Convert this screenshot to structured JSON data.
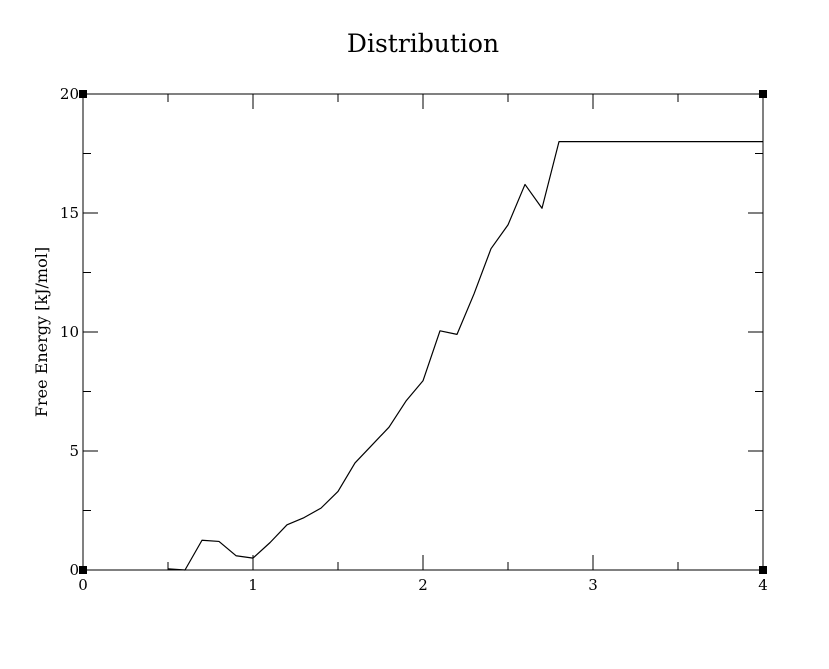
{
  "chart_data": {
    "type": "line",
    "title": "Distribution",
    "xlabel": "",
    "ylabel": "Free Energy [kJ/mol]",
    "xlim": [
      0,
      4
    ],
    "ylim": [
      0,
      20
    ],
    "grid": false,
    "legend": "none",
    "x_ticks": [
      0,
      1,
      2,
      3,
      4
    ],
    "x_tick_labels": [
      "0",
      "1",
      "2",
      "3",
      "4"
    ],
    "y_ticks": [
      0,
      5,
      10,
      15,
      20
    ],
    "y_tick_labels": [
      "0",
      "5",
      "10",
      "15",
      "20"
    ],
    "x_minor_step": 0.5,
    "y_minor_step": 2.5,
    "series": [
      {
        "name": "free-energy",
        "color": "#000000",
        "segments": [
          [
            [
              0.5,
              0.05
            ],
            [
              0.6,
              0.0
            ],
            [
              0.7,
              1.25
            ],
            [
              0.8,
              1.2
            ],
            [
              0.9,
              0.6
            ],
            [
              1.0,
              0.5
            ],
            [
              1.1,
              1.15
            ],
            [
              1.2,
              1.9
            ],
            [
              1.3,
              2.2
            ],
            [
              1.4,
              2.6
            ],
            [
              1.5,
              3.3
            ],
            [
              1.6,
              4.5
            ],
            [
              1.7,
              5.25
            ],
            [
              1.8,
              6.0
            ],
            [
              1.9,
              7.1
            ],
            [
              2.0,
              7.95
            ],
            [
              2.1,
              10.05
            ],
            [
              2.2,
              9.9
            ],
            [
              2.3,
              11.6
            ],
            [
              2.4,
              13.5
            ],
            [
              2.5,
              14.5
            ],
            [
              2.6,
              16.2
            ],
            [
              2.7,
              15.2
            ],
            [
              2.8,
              18.0
            ],
            [
              3.0,
              18.0
            ],
            [
              3.5,
              18.0
            ],
            [
              4.0,
              18.0
            ]
          ]
        ]
      }
    ],
    "corner_markers": [
      [
        0,
        0
      ],
      [
        4,
        0
      ],
      [
        0,
        20
      ],
      [
        4,
        20
      ]
    ]
  }
}
